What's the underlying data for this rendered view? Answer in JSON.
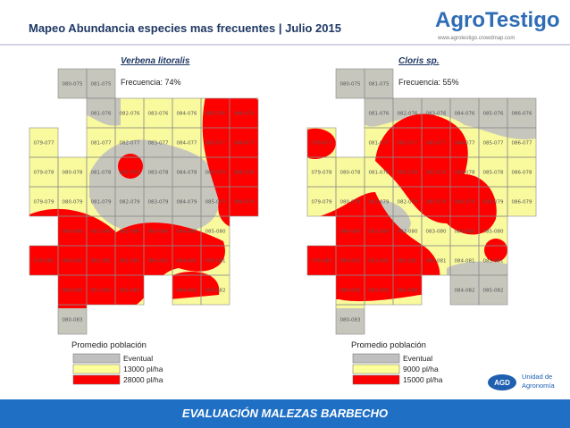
{
  "header": {
    "title": "Mapeo Abundancia especies mas frecuentes | Julio 2015",
    "logo": "AgroTestigo",
    "url": "www.agrotestigo.crowdmap.com"
  },
  "maps": [
    {
      "title": "Verbena litoralis",
      "frequency": "Frecuencia: 74%",
      "legend_title": "Promedio población",
      "legend": [
        "Eventual",
        "13000 pl/ha",
        "28000 pl/ha"
      ],
      "cells": [
        [
          null,
          "080-075",
          "081-075",
          null,
          null,
          null,
          null,
          null
        ],
        [
          null,
          null,
          "081-076",
          "082-076",
          "083-076",
          "084-076",
          "085-076",
          "086-076"
        ],
        [
          "079-077",
          null,
          "081-077",
          "082-077",
          "083-077",
          "084-077",
          "085-077",
          "086-077"
        ],
        [
          "079-078",
          "080-078",
          "081-078",
          "082-078",
          "083-078",
          "084-078",
          "085-078",
          "086-078"
        ],
        [
          "079-079",
          "080-079",
          "081-079",
          "082-079",
          "083-079",
          "084-079",
          "085-079",
          "086-079"
        ],
        [
          null,
          "080-080",
          "081-080",
          "082-080",
          "083-080",
          "084-080",
          "085-080",
          null
        ],
        [
          "079-081",
          "080-081",
          "081-081",
          "082-081",
          "083-081",
          "084-081",
          "085-081",
          null
        ],
        [
          null,
          "080-082",
          "081-082",
          "082-082",
          null,
          "084-082",
          "085-082",
          null
        ],
        [
          null,
          "080-083",
          null,
          null,
          null,
          null,
          null,
          null
        ]
      ]
    },
    {
      "title": "Cloris sp.",
      "frequency": "Frecuencia: 55%",
      "legend_title": "Promedio población",
      "legend": [
        "Eventual",
        "9000 pl/ha",
        "15000 pl/ha"
      ],
      "cells": [
        [
          null,
          "080-075",
          "081-075",
          null,
          null,
          null,
          null,
          null
        ],
        [
          null,
          null,
          "081-076",
          "082-076",
          "083-076",
          "084-076",
          "085-076",
          "086-076"
        ],
        [
          "079-077",
          null,
          "081-077",
          "082-077",
          "083-077",
          "084-077",
          "085-077",
          "086-077"
        ],
        [
          "079-078",
          "080-078",
          "081-078",
          "082-078",
          "083-078",
          "084-078",
          "085-078",
          "086-078"
        ],
        [
          "079-079",
          "080-079",
          "081-079",
          "082-079",
          "083-079",
          "084-079",
          "085-079",
          "086-079"
        ],
        [
          null,
          "080-080",
          "081-080",
          "082-080",
          "083-080",
          "084-080",
          "085-080",
          null
        ],
        [
          "079-081",
          "080-081",
          "081-081",
          "082-081",
          "083-081",
          "084-081",
          "085-081",
          null
        ],
        [
          null,
          "080-082",
          "081-082",
          "082-082",
          null,
          "084-082",
          "085-082",
          null
        ],
        [
          null,
          "080-083",
          null,
          null,
          null,
          null,
          null,
          null
        ]
      ]
    }
  ],
  "badge": {
    "short": "AGD",
    "unit": "Unidad de",
    "unit2": "Agronomía"
  },
  "footer": "EVALUACIÓN MALEZAS BARBECHO"
}
